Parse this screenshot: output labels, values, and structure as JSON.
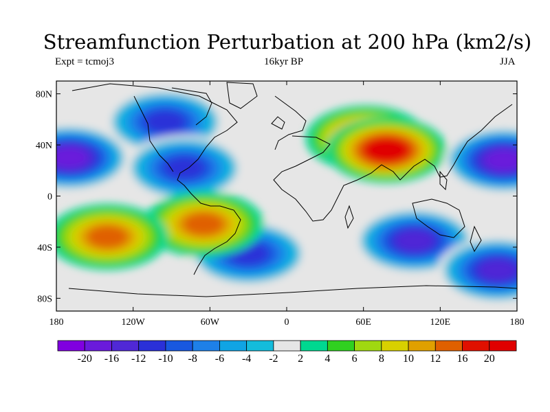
{
  "title": "Streamfunction Perturbation at 200 hPa (km2/s)",
  "experiment": "Expt = tcmoj3",
  "period": "16kyr BP",
  "season": "JJA",
  "map": {
    "lat_labels": [
      "80N",
      "40N",
      "0",
      "40S",
      "80S"
    ],
    "lat_values": [
      80,
      40,
      0,
      -40,
      -80
    ],
    "lon_labels": [
      "180",
      "120W",
      "60W",
      "0",
      "60E",
      "120E",
      "180"
    ],
    "lon_values": [
      -180,
      -120,
      -60,
      0,
      60,
      120,
      180
    ],
    "lat_range": [
      -90,
      90
    ],
    "lon_range": [
      -180,
      180
    ],
    "land_background": "#e6e6e6"
  },
  "colorbar": {
    "labels": [
      "-20",
      "-16",
      "-12",
      "-10",
      "-8",
      "-6",
      "-4",
      "-2",
      "2",
      "4",
      "6",
      "8",
      "10",
      "12",
      "16",
      "20"
    ],
    "colors": [
      "#8000e0",
      "#6a1adb",
      "#5028d6",
      "#2a30d8",
      "#1858e0",
      "#1e80e8",
      "#10a4e4",
      "#14bcdc",
      "#e6e6e6",
      "#00d890",
      "#30d020",
      "#a0d810",
      "#d8d000",
      "#e0a000",
      "#e06000",
      "#e01000",
      "#e00000"
    ]
  },
  "field_features": [
    {
      "name": "NE Eurasia high",
      "lon": 62,
      "lat": 45,
      "value": 18
    },
    {
      "name": "NE Eurasia high core",
      "lon": 78,
      "lat": 36,
      "value": 20
    },
    {
      "name": "North America low",
      "lon": -95,
      "lat": 58,
      "value": -14
    },
    {
      "name": "Caribbean low",
      "lon": -80,
      "lat": 22,
      "value": -12
    },
    {
      "name": "Central Pacific low",
      "lon": -170,
      "lat": 30,
      "value": -20
    },
    {
      "name": "West Pacific low",
      "lon": 170,
      "lat": 28,
      "value": -20
    },
    {
      "name": "Southern Indian Ocean low",
      "lon": 100,
      "lat": -35,
      "value": -18
    },
    {
      "name": "South Atlantic low",
      "lon": -30,
      "lat": -45,
      "value": -12
    },
    {
      "name": "South America high",
      "lon": -65,
      "lat": -22,
      "value": 14
    },
    {
      "name": "South Pacific high",
      "lon": -140,
      "lat": -32,
      "value": 12
    },
    {
      "name": "Southern Ocean low",
      "lon": 165,
      "lat": -58,
      "value": -18
    }
  ]
}
